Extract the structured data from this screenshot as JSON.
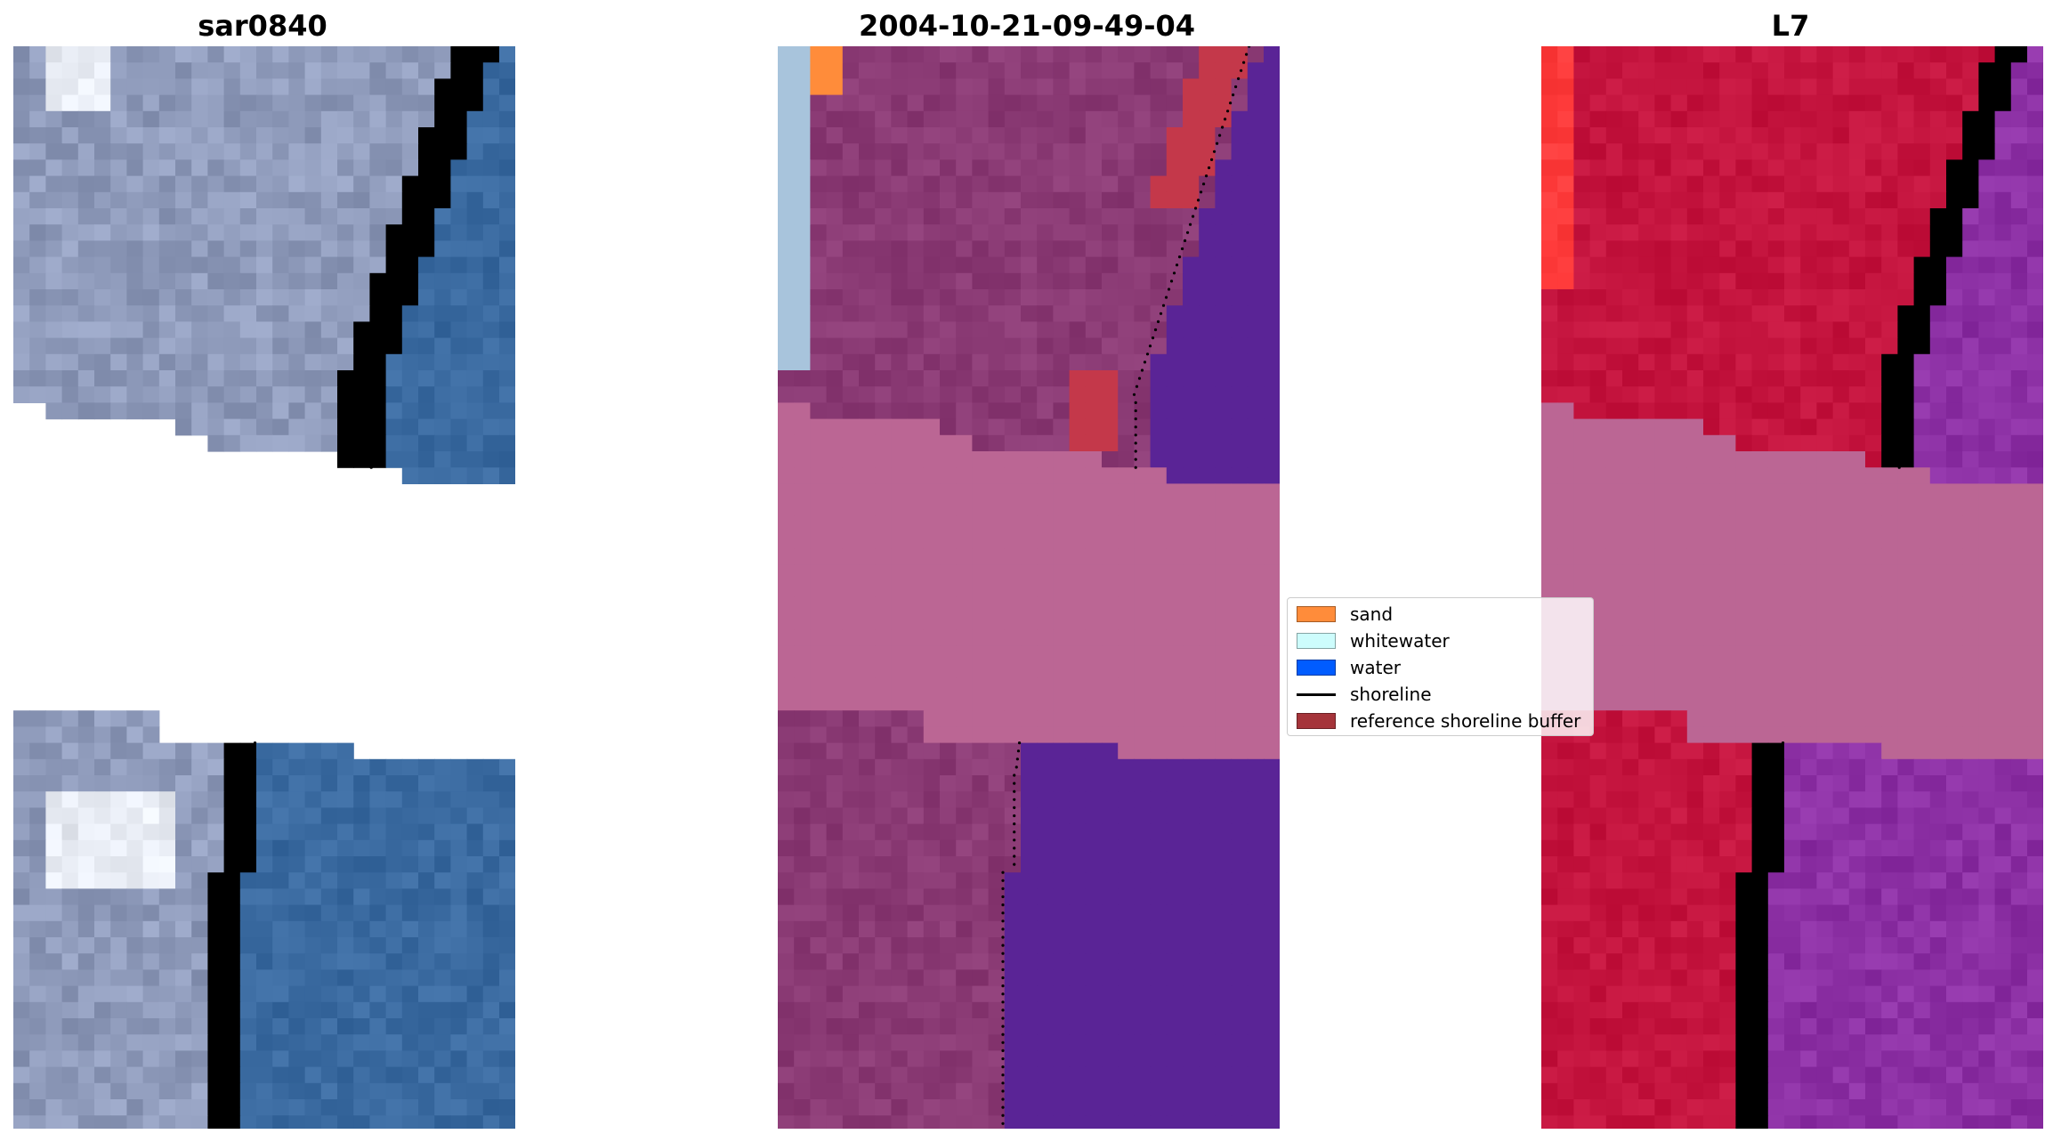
{
  "panels": [
    {
      "title": "sar0840"
    },
    {
      "title": "2004-10-21-09-49-04"
    },
    {
      "title": "L7"
    }
  ],
  "legend": {
    "items": [
      {
        "label": "sand",
        "color": "#ff8c3a",
        "kind": "patch"
      },
      {
        "label": "whitewater",
        "color": "#cdfcfc",
        "kind": "patch"
      },
      {
        "label": "water",
        "color": "#005cff",
        "kind": "patch"
      },
      {
        "label": "shoreline",
        "color": "#000000",
        "kind": "line"
      },
      {
        "label": "reference shoreline buffer",
        "color": "#a5343a",
        "kind": "patch"
      }
    ]
  },
  "colors": {
    "rgb_land": "#8f9bbb",
    "rgb_bright": "#e8ecf4",
    "rgb_water": "#3a6aa0",
    "class_land": "#8a3a74",
    "class_water": "#5a2496",
    "class_buffer": "#c4384a",
    "class_whitewater": "#a8c4dc",
    "nodata_pink": "#bb6694",
    "mndwi_land": "#c4143e",
    "mndwi_water": "#8c30a4",
    "mndwi_high": "#ff3b3b"
  }
}
